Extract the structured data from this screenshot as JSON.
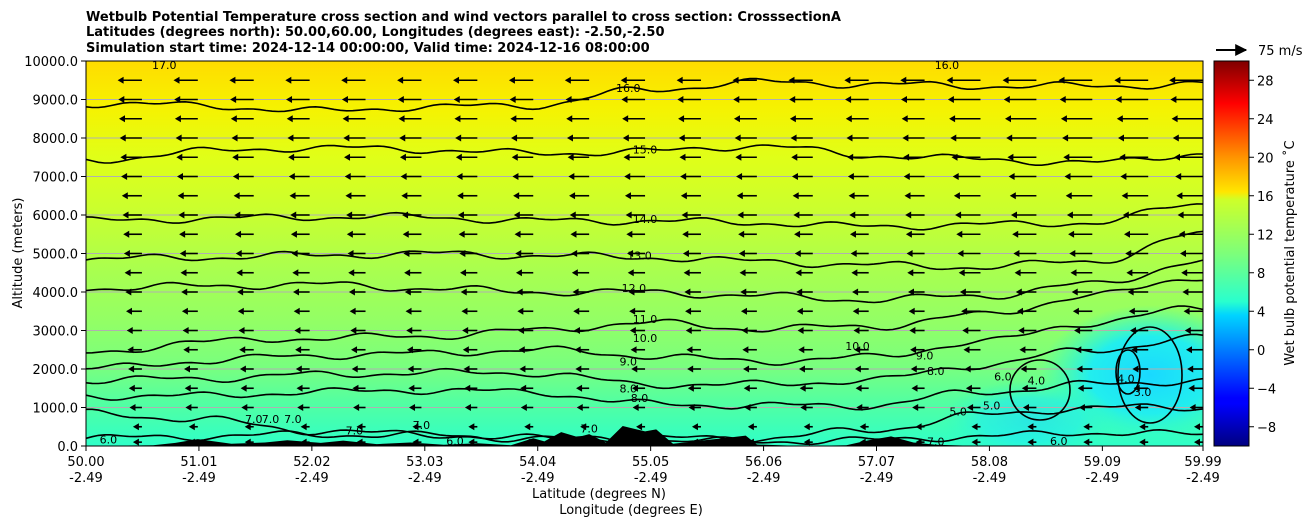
{
  "chart_data": {
    "type": "heatmap",
    "title_lines": [
      "Wetbulb Potential Temperature cross section and wind vectors parallel to cross section: CrosssectionA",
      "Latitudes (degrees north): 50.00,60.00, Longitudes (degrees east): -2.50,-2.50",
      "Simulation start time: 2024-12-14 00:00:00, Valid time: 2024-12-16 08:00:00"
    ],
    "ylabel": "Altitude (meters)",
    "xlabel_line1": "Latitude (degrees N)",
    "xlabel_line2": "Longitude (degrees E)",
    "ylim": [
      0,
      10000
    ],
    "xlim": [
      50.0,
      59.99
    ],
    "y_ticks": [
      "0.0",
      "1000.0",
      "2000.0",
      "3000.0",
      "4000.0",
      "5000.0",
      "6000.0",
      "7000.0",
      "8000.0",
      "9000.0",
      "10000.0"
    ],
    "x_ticks": [
      {
        "lat": "50.00",
        "lon": "-2.49"
      },
      {
        "lat": "51.01",
        "lon": "-2.49"
      },
      {
        "lat": "52.02",
        "lon": "-2.49"
      },
      {
        "lat": "53.03",
        "lon": "-2.49"
      },
      {
        "lat": "54.04",
        "lon": "-2.49"
      },
      {
        "lat": "55.05",
        "lon": "-2.49"
      },
      {
        "lat": "56.06",
        "lon": "-2.49"
      },
      {
        "lat": "57.07",
        "lon": "-2.49"
      },
      {
        "lat": "58.08",
        "lon": "-2.49"
      },
      {
        "lat": "59.09",
        "lon": "-2.49"
      },
      {
        "lat": "59.99",
        "lon": "-2.49"
      }
    ],
    "grid": "horizontal",
    "colorbar": {
      "label": "Wet bulb potential temperature ˚C",
      "vmin": -10,
      "vmax": 30,
      "colormap": "jet",
      "ticks": [
        "−8",
        "−4",
        "0",
        "4",
        "8",
        "12",
        "16",
        "20",
        "24",
        "28"
      ]
    },
    "quiver_key": "75 m/s",
    "contours": [
      {
        "label": "6.0",
        "alt": [
          200,
          250,
          300,
          280,
          200,
          150,
          120,
          150,
          250,
          350,
          300
        ]
      },
      {
        "label": "7.0",
        "alt": [
          850,
          700,
          400,
          300,
          200,
          200,
          200,
          400,
          800,
          1000,
          1000
        ]
      },
      {
        "label": "8.0",
        "alt": [
          1300,
          1300,
          1400,
          1450,
          1400,
          1100,
          1050,
          1050,
          1400,
          1600,
          1700
        ]
      },
      {
        "label": "9.0",
        "alt": [
          1700,
          1750,
          1850,
          1900,
          1900,
          1600,
          1600,
          1700,
          2100,
          2500,
          2800
        ]
      },
      {
        "label": "10.0",
        "alt": [
          2000,
          2200,
          2350,
          2400,
          2500,
          2350,
          2200,
          2300,
          2700,
          3200,
          3600
        ]
      },
      {
        "label": "11.0",
        "alt": [
          2400,
          2700,
          2800,
          2850,
          3000,
          3200,
          3050,
          3100,
          3400,
          3900,
          4400
        ]
      },
      {
        "label": "12.0",
        "alt": [
          4100,
          4150,
          4200,
          4100,
          4000,
          4000,
          3900,
          3800,
          3900,
          4200,
          4800
        ]
      },
      {
        "label": "13.0",
        "alt": [
          4850,
          4900,
          4950,
          5000,
          4950,
          4900,
          4800,
          4700,
          4650,
          4800,
          5500
        ]
      },
      {
        "label": "14.0",
        "alt": [
          5850,
          5900,
          5950,
          5950,
          5850,
          5850,
          5800,
          5700,
          5750,
          5800,
          6300
        ]
      },
      {
        "label": "15.0",
        "alt": [
          7400,
          7650,
          7750,
          7700,
          7600,
          7650,
          7800,
          7550,
          7450,
          7350,
          7600
        ]
      },
      {
        "label": "16.0",
        "alt": [
          8900,
          8850,
          8700,
          8800,
          8850,
          9250,
          9450,
          9400,
          9350,
          9350,
          9400
        ]
      }
    ],
    "contour_labels": [
      {
        "label": "17.0",
        "lat": 50.7,
        "alt": 9900
      },
      {
        "label": "16.0",
        "lat": 54.85,
        "alt": 9300
      },
      {
        "label": "16.0",
        "lat": 57.7,
        "alt": 9900
      },
      {
        "label": "15.0",
        "lat": 55.0,
        "alt": 7700
      },
      {
        "label": "14.0",
        "lat": 55.0,
        "alt": 5900
      },
      {
        "label": "13.0",
        "lat": 54.95,
        "alt": 4950
      },
      {
        "label": "12.0",
        "lat": 54.9,
        "alt": 4100
      },
      {
        "label": "11.0",
        "lat": 55.0,
        "alt": 3300
      },
      {
        "label": "10.0",
        "lat": 55.0,
        "alt": 2800
      },
      {
        "label": "10.0",
        "lat": 56.9,
        "alt": 2600
      },
      {
        "label": "9.0",
        "lat": 54.85,
        "alt": 2200
      },
      {
        "label": "9.0",
        "lat": 57.5,
        "alt": 2350
      },
      {
        "label": "8.0",
        "lat": 54.85,
        "alt": 1500
      },
      {
        "label": "8.0",
        "lat": 54.95,
        "alt": 1250
      },
      {
        "label": "8.0",
        "lat": 57.6,
        "alt": 1950
      },
      {
        "label": "7.0",
        "lat": 51.5,
        "alt": 700
      },
      {
        "label": "7.0",
        "lat": 51.65,
        "alt": 700
      },
      {
        "label": "7.0",
        "lat": 51.85,
        "alt": 700
      },
      {
        "label": "7.0",
        "lat": 52.4,
        "alt": 400
      },
      {
        "label": "7.0",
        "lat": 53.0,
        "alt": 550
      },
      {
        "label": "7.0",
        "lat": 54.5,
        "alt": 450
      },
      {
        "label": "7.0",
        "lat": 57.6,
        "alt": 120
      },
      {
        "label": "6.0",
        "lat": 53.3,
        "alt": 130
      },
      {
        "label": "6.0",
        "lat": 58.2,
        "alt": 1800
      },
      {
        "label": "6.0",
        "lat": 58.7,
        "alt": 130
      },
      {
        "label": "6.0",
        "lat": 50.2,
        "alt": 170
      },
      {
        "label": "5.0",
        "lat": 57.8,
        "alt": 900
      },
      {
        "label": "5.0",
        "lat": 58.1,
        "alt": 1050
      },
      {
        "label": "4.0",
        "lat": 58.5,
        "alt": 1700
      },
      {
        "label": "4.0",
        "lat": 59.3,
        "alt": 1750
      },
      {
        "label": "3.0",
        "lat": 59.45,
        "alt": 1400
      }
    ],
    "terrain": [
      {
        "lat": 50.0,
        "alt": 0
      },
      {
        "lat": 50.6,
        "alt": 20
      },
      {
        "lat": 50.8,
        "alt": 80
      },
      {
        "lat": 51.0,
        "alt": 180
      },
      {
        "lat": 51.3,
        "alt": 60
      },
      {
        "lat": 51.6,
        "alt": 90
      },
      {
        "lat": 51.8,
        "alt": 150
      },
      {
        "lat": 52.1,
        "alt": 80
      },
      {
        "lat": 52.3,
        "alt": 140
      },
      {
        "lat": 52.6,
        "alt": 50
      },
      {
        "lat": 52.9,
        "alt": 90
      },
      {
        "lat": 53.2,
        "alt": 30
      },
      {
        "lat": 53.5,
        "alt": 70
      },
      {
        "lat": 53.8,
        "alt": 20
      },
      {
        "lat": 54.0,
        "alt": 200
      },
      {
        "lat": 54.1,
        "alt": 120
      },
      {
        "lat": 54.25,
        "alt": 360
      },
      {
        "lat": 54.4,
        "alt": 230
      },
      {
        "lat": 54.5,
        "alt": 310
      },
      {
        "lat": 54.65,
        "alt": 90
      },
      {
        "lat": 54.8,
        "alt": 520
      },
      {
        "lat": 55.0,
        "alt": 380
      },
      {
        "lat": 55.1,
        "alt": 430
      },
      {
        "lat": 55.25,
        "alt": 60
      },
      {
        "lat": 55.5,
        "alt": 140
      },
      {
        "lat": 55.7,
        "alt": 200
      },
      {
        "lat": 55.9,
        "alt": 270
      },
      {
        "lat": 56.0,
        "alt": 40
      },
      {
        "lat": 56.4,
        "alt": 0
      },
      {
        "lat": 56.8,
        "alt": 20
      },
      {
        "lat": 57.0,
        "alt": 150
      },
      {
        "lat": 57.2,
        "alt": 250
      },
      {
        "lat": 57.4,
        "alt": 90
      },
      {
        "lat": 57.6,
        "alt": 30
      },
      {
        "lat": 58.0,
        "alt": 0
      },
      {
        "lat": 59.99,
        "alt": 0
      }
    ],
    "wind_rows_alt": [
      100,
      500,
      1000,
      1500,
      2000,
      2500,
      3000,
      3500,
      4000,
      4500,
      5000,
      5500,
      6000,
      6500,
      7000,
      7500,
      8000,
      8500,
      9000,
      9500
    ],
    "wind_cols_lat": [
      50.0,
      50.5,
      51.0,
      51.5,
      52.0,
      52.5,
      53.0,
      53.5,
      54.0,
      54.5,
      55.0,
      55.5,
      56.0,
      56.5,
      57.0,
      57.5,
      58.0,
      58.5,
      59.0,
      59.5,
      59.99
    ]
  }
}
